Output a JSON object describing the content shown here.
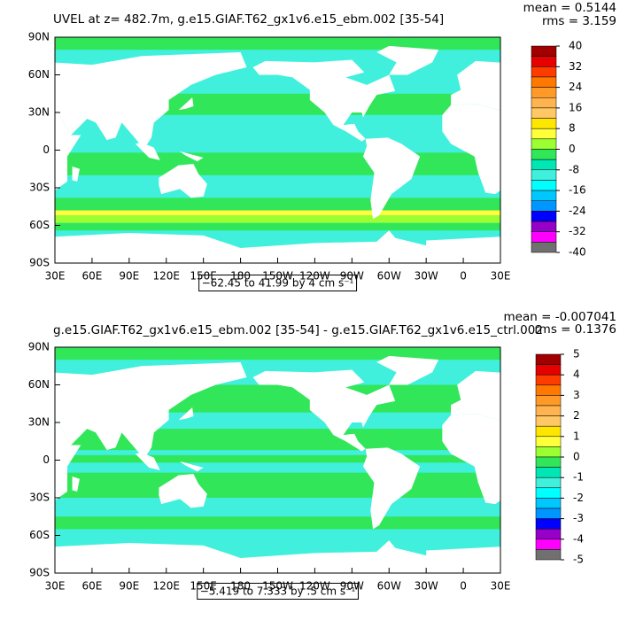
{
  "chart_data": [
    {
      "type": "map",
      "title": "UVEL at z= 482.7m, g.e15.GIAF.T62_gx1v6.e15_ebm.002 [35-54]",
      "mean_label": "mean = 0.5144",
      "rms_label": "rms = 3.159",
      "info": "−62.45 to 41.99 by 4 cm s⁻¹",
      "xlim": [
        30,
        390
      ],
      "ylim": [
        -90,
        90
      ],
      "xticks": [
        {
          "value": 30,
          "label": "30E"
        },
        {
          "value": 60,
          "label": "60E"
        },
        {
          "value": 90,
          "label": "90E"
        },
        {
          "value": 120,
          "label": "120E"
        },
        {
          "value": 150,
          "label": "150E"
        },
        {
          "value": 180,
          "label": "180"
        },
        {
          "value": 210,
          "label": "150W"
        },
        {
          "value": 240,
          "label": "120W"
        },
        {
          "value": 270,
          "label": "90W"
        },
        {
          "value": 300,
          "label": "60W"
        },
        {
          "value": 330,
          "label": "30W"
        },
        {
          "value": 360,
          "label": "0"
        },
        {
          "value": 390,
          "label": "30E"
        }
      ],
      "yticks": [
        {
          "value": 90,
          "label": "90N"
        },
        {
          "value": 60,
          "label": "60N"
        },
        {
          "value": 30,
          "label": "30N"
        },
        0,
        {
          "value": -30,
          "label": "30S"
        },
        {
          "value": -60,
          "label": "60S"
        },
        {
          "value": -90,
          "label": "90S"
        }
      ],
      "colorbar": {
        "lim": [
          -40,
          40
        ],
        "ticks": [
          40,
          32,
          24,
          16,
          8,
          0,
          -8,
          -16,
          -24,
          -32,
          -40
        ],
        "colors": [
          "#a00000",
          "#e60000",
          "#ff3c00",
          "#ff7800",
          "#ff9a28",
          "#ffb450",
          "#ffc864",
          "#ffe600",
          "#ffff3c",
          "#9bff32",
          "#32e65a",
          "#00e6b4",
          "#40f0dc",
          "#00ffff",
          "#00c8ff",
          "#0096ff",
          "#0000ff",
          "#9600c8",
          "#ff00ff",
          "#707070"
        ]
      }
    },
    {
      "type": "map",
      "title": "g.e15.GIAF.T62_gx1v6.e15_ebm.002 [35-54] - g.e15.GIAF.T62_gx1v6.e15_ctrl.002",
      "mean_label": "mean = -0.007041",
      "rms_label": "rms = 0.1376",
      "info": "−5.419 to 7.333 by .5 cm s⁻¹",
      "xlim": [
        30,
        390
      ],
      "ylim": [
        -90,
        90
      ],
      "xticks": [
        {
          "value": 30,
          "label": "30E"
        },
        {
          "value": 60,
          "label": "60E"
        },
        {
          "value": 90,
          "label": "90E"
        },
        {
          "value": 120,
          "label": "120E"
        },
        {
          "value": 150,
          "label": "150E"
        },
        {
          "value": 180,
          "label": "180"
        },
        {
          "value": 210,
          "label": "150W"
        },
        {
          "value": 240,
          "label": "120W"
        },
        {
          "value": 270,
          "label": "90W"
        },
        {
          "value": 300,
          "label": "60W"
        },
        {
          "value": 330,
          "label": "30W"
        },
        {
          "value": 360,
          "label": "0"
        },
        {
          "value": 390,
          "label": "30E"
        }
      ],
      "yticks": [
        {
          "value": 90,
          "label": "90N"
        },
        {
          "value": 60,
          "label": "60N"
        },
        {
          "value": 30,
          "label": "30N"
        },
        0,
        {
          "value": -30,
          "label": "30S"
        },
        {
          "value": -60,
          "label": "60S"
        },
        {
          "value": -90,
          "label": "90S"
        }
      ],
      "colorbar": {
        "lim": [
          -5,
          5
        ],
        "ticks": [
          5,
          4,
          3,
          2,
          1,
          0,
          -1,
          -2,
          -3,
          -4,
          -5
        ],
        "colors": [
          "#a00000",
          "#e60000",
          "#ff3c00",
          "#ff7800",
          "#ff9a28",
          "#ffb450",
          "#ffc864",
          "#ffe600",
          "#ffff3c",
          "#9bff32",
          "#32e65a",
          "#00e6b4",
          "#40f0dc",
          "#00ffff",
          "#00c8ff",
          "#0096ff",
          "#0000ff",
          "#9600c8",
          "#ff00ff",
          "#707070"
        ]
      }
    }
  ]
}
